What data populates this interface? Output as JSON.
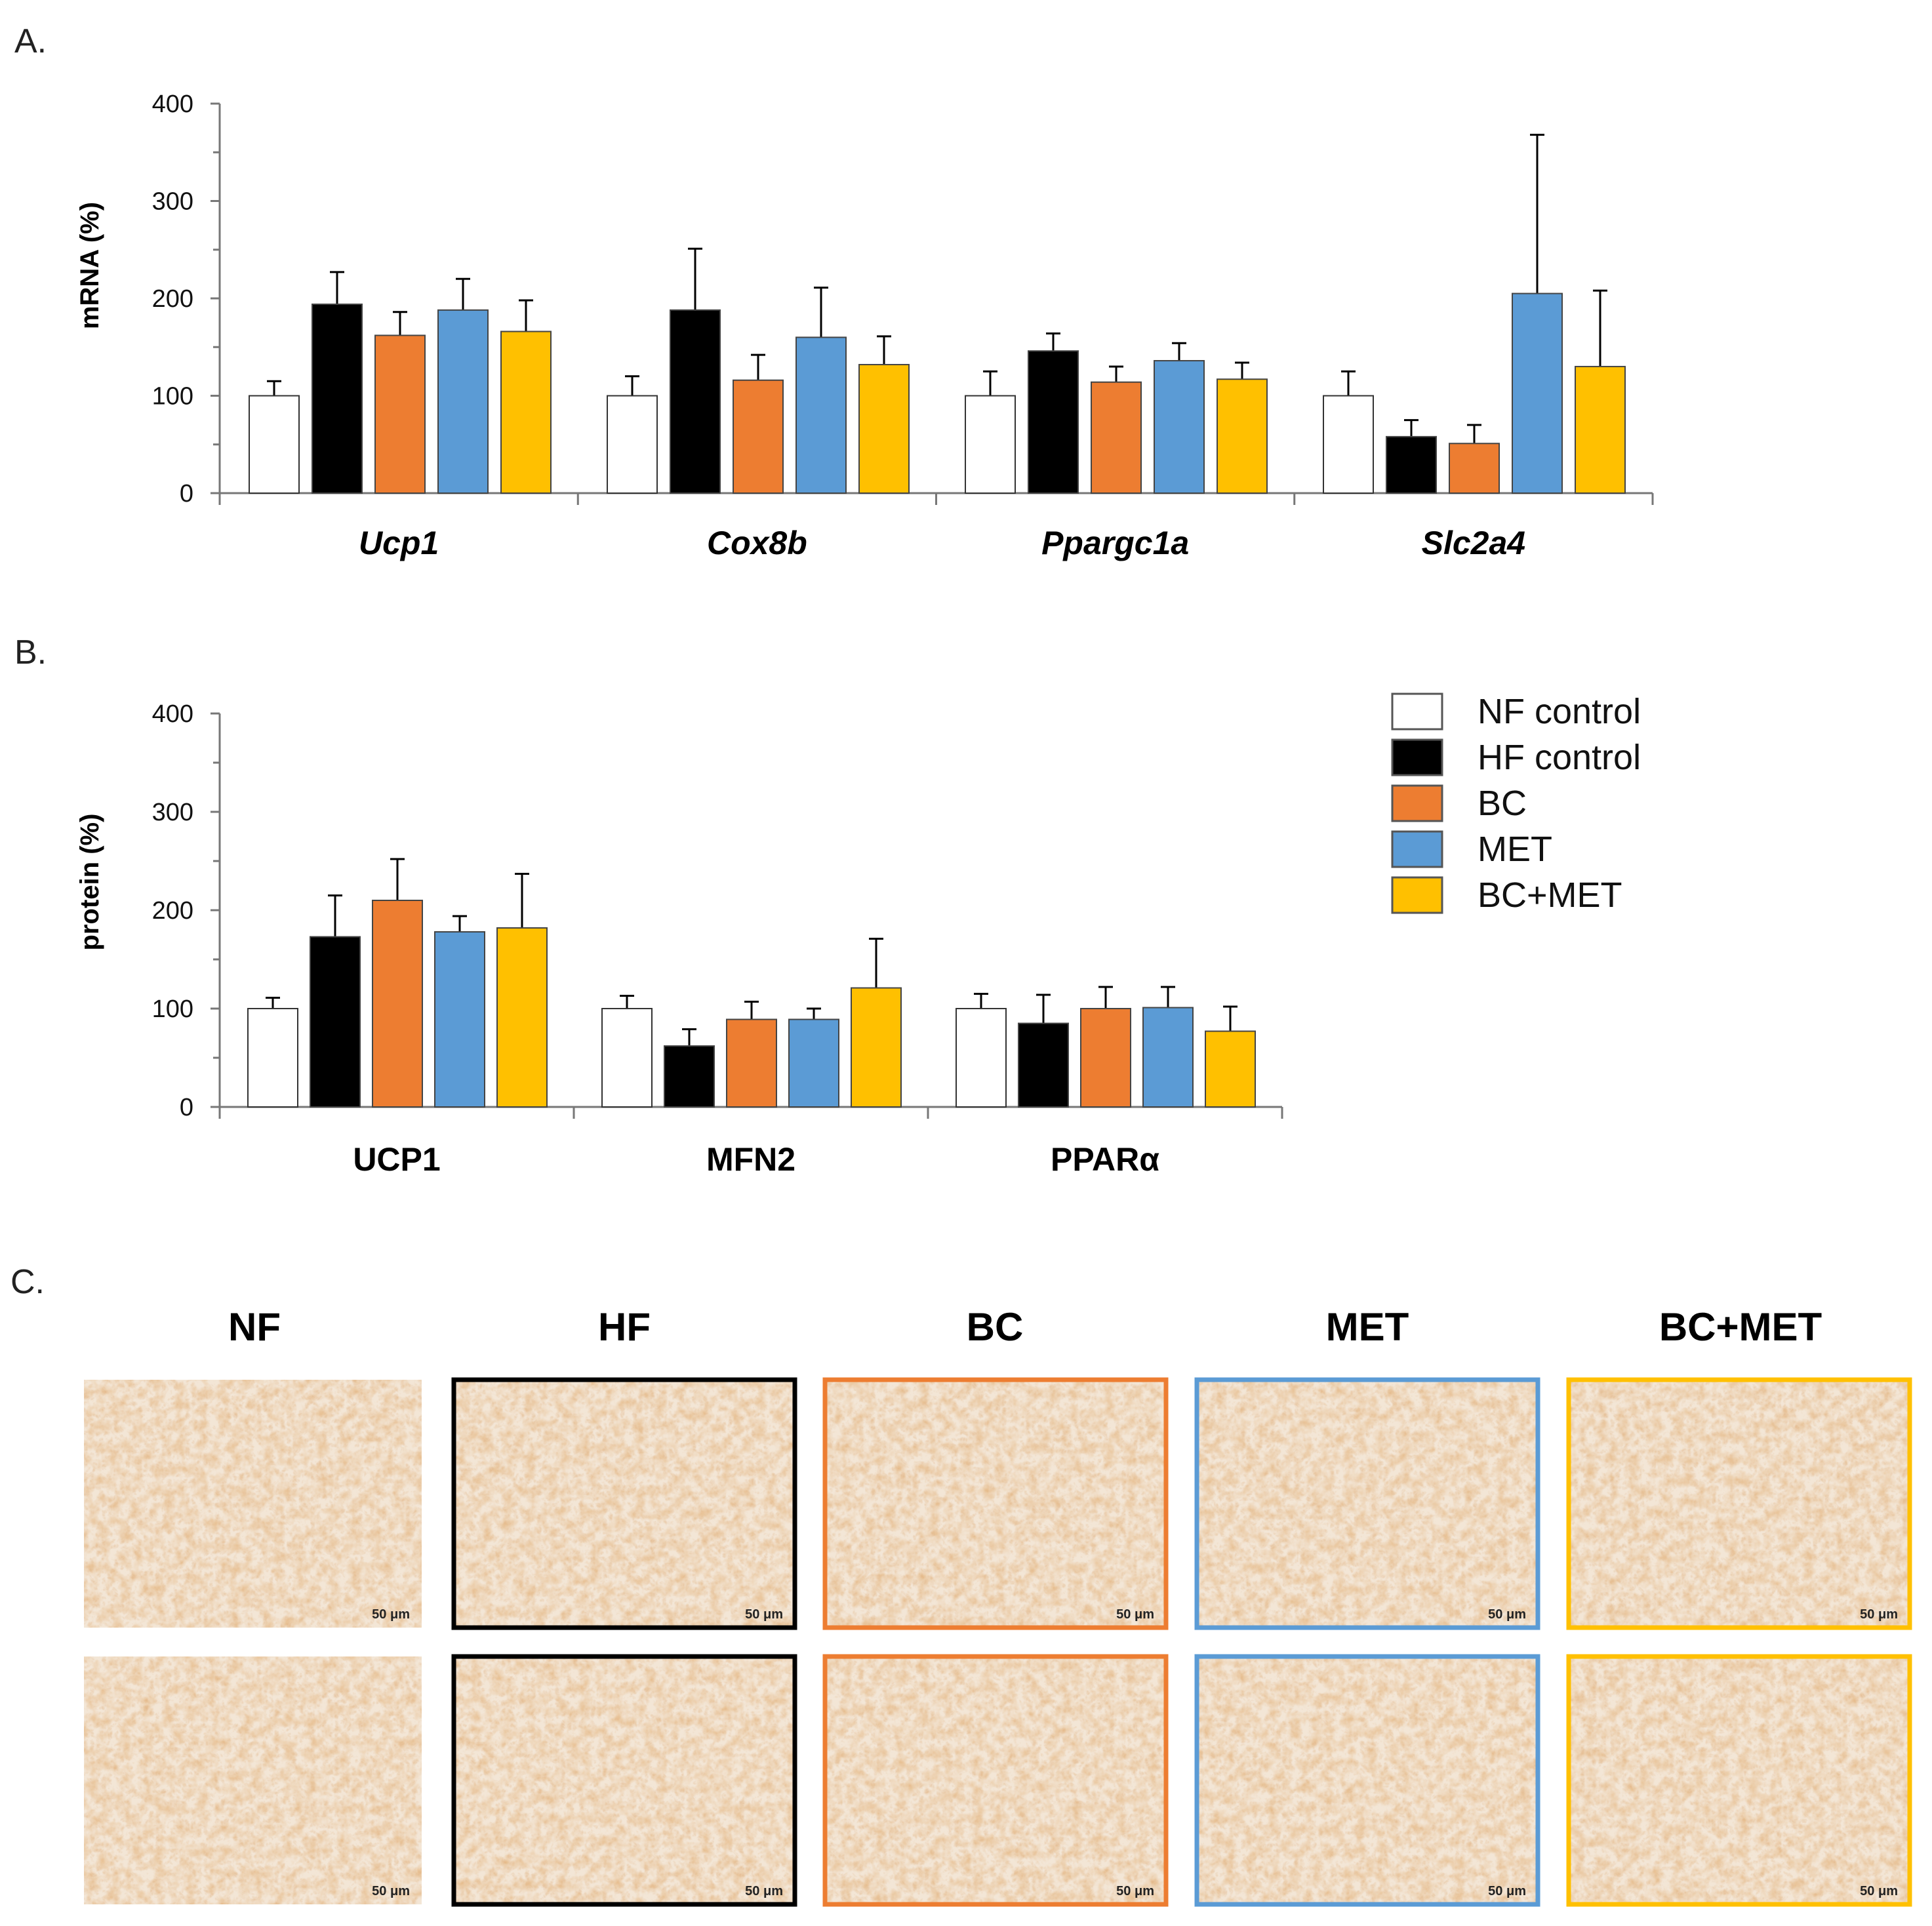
{
  "panels": {
    "a": "A.",
    "b": "B.",
    "c": "C."
  },
  "chart_data": [
    {
      "type": "bar",
      "panel": "A.",
      "ylabel": "mRNA (%)",
      "ylim": [
        0,
        400
      ],
      "yticks": [
        0,
        100,
        200,
        300,
        400
      ],
      "category_style": "italic",
      "categories": [
        "Ucp1",
        "Cox8b",
        "Ppargc1a",
        "Slc2a4"
      ],
      "series": [
        {
          "name": "NF control",
          "color": "#ffffff",
          "values": [
            100,
            100,
            100,
            100
          ],
          "errors": [
            15,
            20,
            25,
            25
          ]
        },
        {
          "name": "HF control",
          "color": "#000000",
          "values": [
            194,
            188,
            146,
            58
          ],
          "errors": [
            33,
            63,
            18,
            17
          ]
        },
        {
          "name": "BC",
          "color": "#ED7D31",
          "values": [
            162,
            116,
            114,
            51
          ],
          "errors": [
            24,
            26,
            16,
            19
          ]
        },
        {
          "name": "MET",
          "color": "#5B9BD5",
          "values": [
            188,
            160,
            136,
            205
          ],
          "errors": [
            32,
            51,
            18,
            163
          ]
        },
        {
          "name": "BC+MET",
          "color": "#FFC000",
          "values": [
            166,
            132,
            117,
            130
          ],
          "errors": [
            32,
            29,
            17,
            78
          ]
        }
      ]
    },
    {
      "type": "bar",
      "panel": "B.",
      "ylabel": "protein (%)",
      "ylim": [
        0,
        400
      ],
      "yticks": [
        0,
        100,
        200,
        300,
        400
      ],
      "category_style": "bold",
      "categories": [
        "UCP1",
        "MFN2",
        "PPARα"
      ],
      "series": [
        {
          "name": "NF control",
          "color": "#ffffff",
          "values": [
            100,
            100,
            100
          ],
          "errors": [
            11,
            13,
            15
          ]
        },
        {
          "name": "HF control",
          "color": "#000000",
          "values": [
            173,
            62,
            85
          ],
          "errors": [
            42,
            17,
            29
          ]
        },
        {
          "name": "BC",
          "color": "#ED7D31",
          "values": [
            210,
            89,
            100
          ],
          "errors": [
            42,
            18,
            22
          ]
        },
        {
          "name": "MET",
          "color": "#5B9BD5",
          "values": [
            178,
            89,
            101
          ],
          "errors": [
            16,
            11,
            21
          ]
        },
        {
          "name": "BC+MET",
          "color": "#FFC000",
          "values": [
            182,
            121,
            77
          ],
          "errors": [
            55,
            50,
            25
          ]
        }
      ]
    }
  ],
  "legend": {
    "items": [
      {
        "label": "NF control",
        "color": "#ffffff"
      },
      {
        "label": "HF control",
        "color": "#000000"
      },
      {
        "label": "BC",
        "color": "#ED7D31"
      },
      {
        "label": "MET",
        "color": "#5B9BD5"
      },
      {
        "label": "BC+MET",
        "color": "#FFC000"
      }
    ]
  },
  "histology": {
    "columns": [
      {
        "title": "NF",
        "border": "none"
      },
      {
        "title": "HF",
        "border": "#000000"
      },
      {
        "title": "BC",
        "border": "#ED7D31"
      },
      {
        "title": "MET",
        "border": "#5B9BD5"
      },
      {
        "title": "BC+MET",
        "border": "#FFC000"
      }
    ],
    "scale_bar_label": "50 μm"
  }
}
